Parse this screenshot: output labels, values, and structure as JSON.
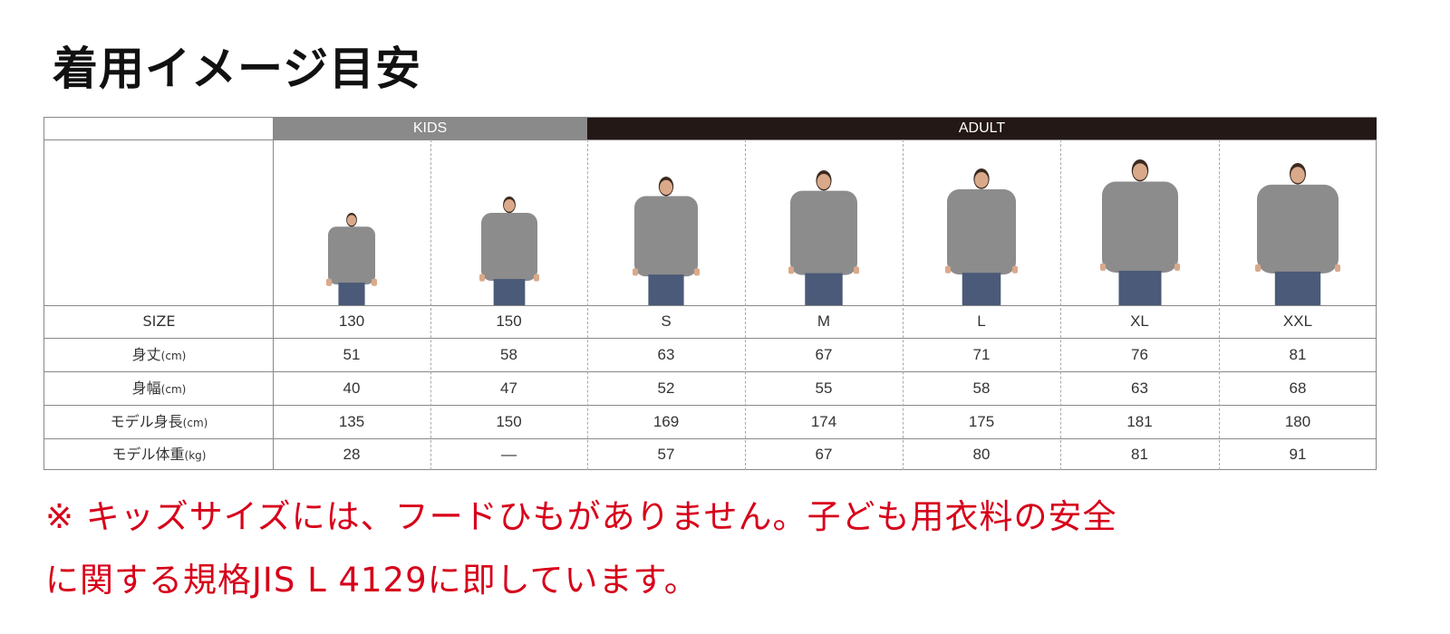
{
  "title": "着用イメージ目安",
  "groups": {
    "kids": "KIDS",
    "adult": "ADULT"
  },
  "colors": {
    "kids_header": "#8a8a8a",
    "adult_header": "#231815",
    "note_text": "#d7001a",
    "hoodie": "#8c8c8c",
    "jeans": "#4a5a78"
  },
  "sizes": [
    "130",
    "150",
    "S",
    "M",
    "L",
    "XL",
    "XXL"
  ],
  "rows": [
    {
      "label": "SIZE",
      "unit": "",
      "values": [
        "130",
        "150",
        "S",
        "M",
        "L",
        "XL",
        "XXL"
      ]
    },
    {
      "label": "身丈",
      "unit": "(cm)",
      "values": [
        "51",
        "58",
        "63",
        "67",
        "71",
        "76",
        "81"
      ]
    },
    {
      "label": "身幅",
      "unit": "(cm)",
      "values": [
        "40",
        "47",
        "52",
        "55",
        "58",
        "63",
        "68"
      ]
    },
    {
      "label": "モデル身長",
      "unit": "(cm)",
      "values": [
        "135",
        "150",
        "169",
        "174",
        "175",
        "181",
        "180"
      ]
    },
    {
      "label": "モデル体重",
      "unit": "(kg)",
      "values": [
        "28",
        "—",
        "57",
        "67",
        "80",
        "81",
        "91"
      ]
    }
  ],
  "note": {
    "line1": "※ キッズサイズには、フードひもがありません。子ども用衣料の安全",
    "line2": "に関する規格JIS L 4129に即しています。"
  }
}
